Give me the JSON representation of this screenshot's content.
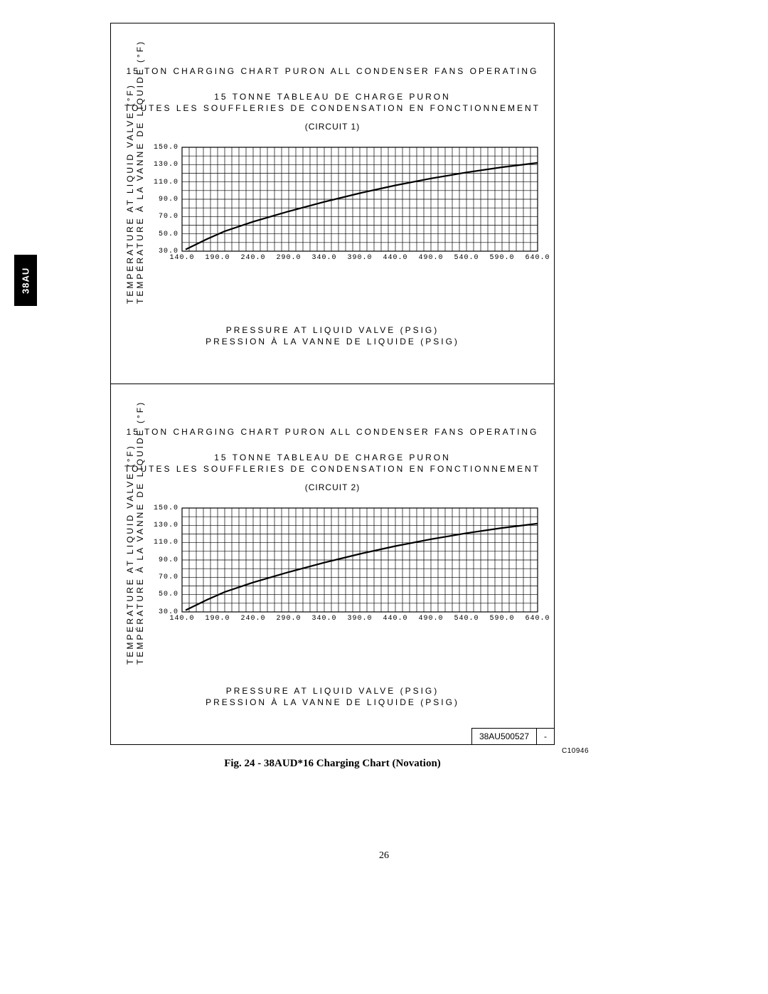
{
  "side_tab": "38AU",
  "ref_code": "C10946",
  "caption_prefix": "Fig. 24 - ",
  "caption_text": "38AUD*16 Charging Chart (Novation)",
  "page_number": "26",
  "part_number": "38AU500527",
  "part_rev": "-",
  "panels": [
    {
      "title_en": "15 TON CHARGING CHART PURON ALL CONDENSER FANS OPERATING",
      "title_fr1": "15 TONNE TABLEAU DE CHARGE PURON",
      "title_fr2": "TOUTES LES SOUFFLERIES DE CONDENSATION EN FONCTIONNEMENT",
      "circuit": "(CIRCUIT 1)",
      "xlabel_en": "PRESSURE AT LIQUID VALVE (PSIG)",
      "xlabel_fr": "PRESSION À LA VANNE DE LIQUIDE (PSIG)",
      "ylabel_en": "TEMPERATURE AT LIQUID VALVE (°F)",
      "ylabel_fr": "TEMPÉRATURE À LA VANNE DE LIQUIDE (°F)"
    },
    {
      "title_en": "15 TON CHARGING CHART PURON ALL CONDENSER FANS OPERATING",
      "title_fr1": "15 TONNE TABLEAU DE CHARGE PURON",
      "title_fr2": "TOUTES LES SOUFFLERIES DE CONDENSATION EN FONCTIONNEMENT",
      "circuit": "(CIRCUIT 2)",
      "xlabel_en": "PRESSURE AT LIQUID VALVE (PSIG)",
      "xlabel_fr": "PRESSION À LA VANNE DE LIQUIDE (PSIG)",
      "ylabel_en": "TEMPERATURE AT LIQUID VALVE (°F)",
      "ylabel_fr": "TEMPÉRATURE À LA VANNE DE LIQUIDE (°F)"
    }
  ],
  "chart_common": {
    "type": "line",
    "xlim": [
      140,
      640
    ],
    "ylim": [
      30,
      150
    ],
    "x_minor_step": 10,
    "x_major_ticks": [
      140,
      190,
      240,
      290,
      340,
      390,
      440,
      490,
      540,
      590,
      640
    ],
    "y_major_ticks": [
      30,
      50,
      70,
      90,
      110,
      130,
      150
    ],
    "y_minor_step": 10,
    "x_tick_labels": [
      "140.0",
      "190.0",
      "240.0",
      "290.0",
      "340.0",
      "390.0",
      "440.0",
      "490.0",
      "540.0",
      "590.0",
      "640.0"
    ],
    "y_tick_labels": [
      "30.0",
      "50.0",
      "70.0",
      "90.0",
      "110.0",
      "130.0",
      "150.0"
    ],
    "grid_color": "#000000",
    "background_color": "#ffffff",
    "line_color": "#000000",
    "line_width": 2.0,
    "label_fontsize": 12,
    "tick_fontsize": 10
  },
  "series": {
    "curve": [
      [
        145,
        32
      ],
      [
        175,
        44
      ],
      [
        200,
        53
      ],
      [
        240,
        64
      ],
      [
        290,
        76
      ],
      [
        340,
        87
      ],
      [
        390,
        97
      ],
      [
        440,
        106
      ],
      [
        490,
        114
      ],
      [
        540,
        121
      ],
      [
        590,
        127
      ],
      [
        640,
        132
      ]
    ]
  }
}
